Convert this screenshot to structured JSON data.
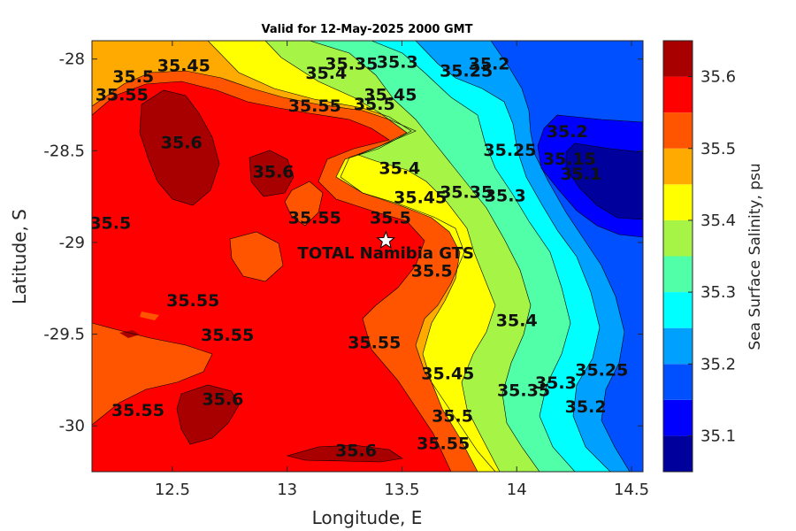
{
  "chart_data": {
    "type": "contour",
    "title": "Valid for 12-May-2025 2000 GMT",
    "xlabel": "Longitude, E",
    "ylabel": "Latitude, S",
    "xlim": [
      12.15,
      14.55
    ],
    "ylim": [
      -30.25,
      -27.9
    ],
    "x_ticks": [
      "12.5",
      "13",
      "13.5",
      "14",
      "14.5"
    ],
    "x_tick_values": [
      12.5,
      13,
      13.5,
      14,
      14.5
    ],
    "y_ticks": [
      "-28",
      "-28.5",
      "-29",
      "-29.5",
      "-30"
    ],
    "y_tick_values": [
      -28,
      -28.5,
      -29,
      -29.5,
      -30
    ],
    "colorbar": {
      "label": "Sea Surface Salinity, psu",
      "range": [
        35.05,
        35.65
      ],
      "tick_labels": [
        "35.1",
        "35.2",
        "35.3",
        "35.4",
        "35.5",
        "35.6"
      ],
      "tick_values": [
        35.1,
        35.2,
        35.3,
        35.4,
        35.5,
        35.6
      ],
      "levels": [
        35.05,
        35.1,
        35.15,
        35.2,
        35.25,
        35.3,
        35.35,
        35.4,
        35.45,
        35.5,
        35.55,
        35.6,
        35.65
      ],
      "colors": [
        "#00009c",
        "#0000ff",
        "#0050ff",
        "#00a0ff",
        "#00ffff",
        "#50ffa8",
        "#a6f546",
        "#ffff00",
        "#ffaa00",
        "#ff5500",
        "#ff0000",
        "#a80000"
      ]
    },
    "contour_labels": [
      {
        "text": "35.45",
        "lon": 12.55,
        "lat": -28.04
      },
      {
        "text": "35.5",
        "lon": 12.33,
        "lat": -28.1
      },
      {
        "text": "35.55",
        "lon": 12.28,
        "lat": -28.2
      },
      {
        "text": "35.6",
        "lon": 12.54,
        "lat": -28.46
      },
      {
        "text": "35.5",
        "lon": 12.23,
        "lat": -28.9
      },
      {
        "text": "35.6",
        "lon": 12.94,
        "lat": -28.62
      },
      {
        "text": "35.55",
        "lon": 13.12,
        "lat": -28.26
      },
      {
        "text": "35.5",
        "lon": 13.38,
        "lat": -28.25
      },
      {
        "text": "35.45",
        "lon": 13.45,
        "lat": -28.2
      },
      {
        "text": "35.4",
        "lon": 13.17,
        "lat": -28.08
      },
      {
        "text": "35.35",
        "lon": 13.28,
        "lat": -28.03
      },
      {
        "text": "35.3",
        "lon": 13.48,
        "lat": -28.02
      },
      {
        "text": "35.25",
        "lon": 13.78,
        "lat": -28.07
      },
      {
        "text": "35.2",
        "lon": 13.88,
        "lat": -28.03
      },
      {
        "text": "35.2",
        "lon": 14.22,
        "lat": -28.4
      },
      {
        "text": "35.15",
        "lon": 14.23,
        "lat": -28.55
      },
      {
        "text": "35.1",
        "lon": 14.28,
        "lat": -28.63
      },
      {
        "text": "35.25",
        "lon": 13.97,
        "lat": -28.5
      },
      {
        "text": "35.3",
        "lon": 13.95,
        "lat": -28.75
      },
      {
        "text": "35.35",
        "lon": 13.78,
        "lat": -28.73
      },
      {
        "text": "35.4",
        "lon": 13.49,
        "lat": -28.6
      },
      {
        "text": "35.45",
        "lon": 13.58,
        "lat": -28.76
      },
      {
        "text": "35.5",
        "lon": 13.45,
        "lat": -28.87
      },
      {
        "text": "35.55",
        "lon": 13.12,
        "lat": -28.87
      },
      {
        "text": "35.5",
        "lon": 13.63,
        "lat": -29.16
      },
      {
        "text": "35.55",
        "lon": 12.59,
        "lat": -29.32
      },
      {
        "text": "35.55",
        "lon": 12.74,
        "lat": -29.51
      },
      {
        "text": "35.55",
        "lon": 13.38,
        "lat": -29.55
      },
      {
        "text": "35.4",
        "lon": 14.0,
        "lat": -29.43
      },
      {
        "text": "35.45",
        "lon": 13.7,
        "lat": -29.72
      },
      {
        "text": "35.35",
        "lon": 14.03,
        "lat": -29.81
      },
      {
        "text": "35.3",
        "lon": 14.17,
        "lat": -29.77
      },
      {
        "text": "35.25",
        "lon": 14.37,
        "lat": -29.7
      },
      {
        "text": "35.2",
        "lon": 14.3,
        "lat": -29.9
      },
      {
        "text": "35.6",
        "lon": 12.72,
        "lat": -29.86
      },
      {
        "text": "35.55",
        "lon": 12.35,
        "lat": -29.92
      },
      {
        "text": "35.5",
        "lon": 13.72,
        "lat": -29.95
      },
      {
        "text": "35.55",
        "lon": 13.68,
        "lat": -30.1
      },
      {
        "text": "35.6",
        "lon": 13.3,
        "lat": -30.14
      }
    ],
    "marker": {
      "label": "TOTAL Namibia GTS",
      "lon": 13.43,
      "lat": -28.99,
      "symbol": "star"
    }
  }
}
